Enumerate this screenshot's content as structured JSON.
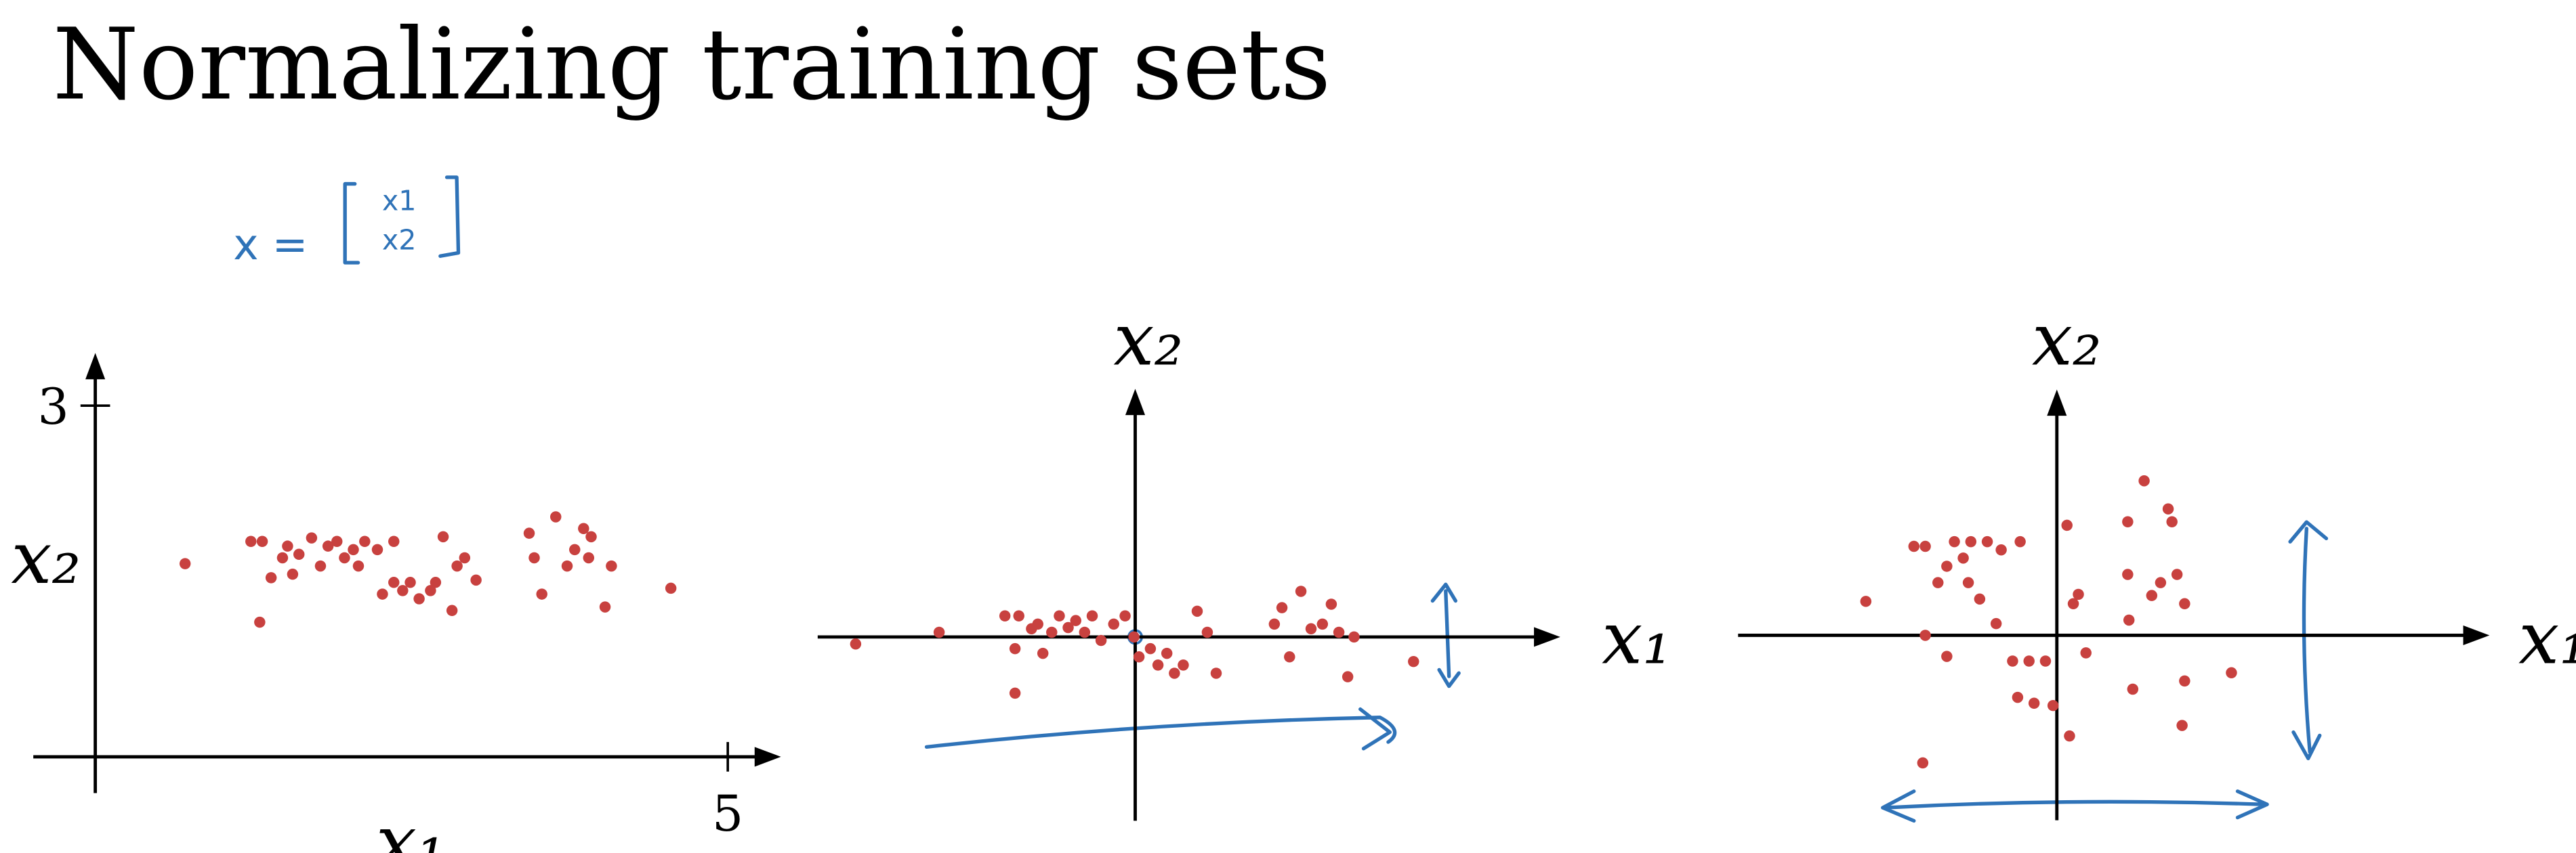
{
  "title": "Normalizing training sets",
  "annotation": {
    "lhs": "x =",
    "rows": [
      "x1",
      "x2"
    ]
  },
  "chart_data": [
    {
      "type": "scatter",
      "x_label": "x₁",
      "y_label": "x₂",
      "color": "#c8413f",
      "xlim": [
        -0.49,
        5.42
      ],
      "ylim": [
        -0.31,
        3.45
      ],
      "xticks": [
        5
      ],
      "yticks": [
        3
      ],
      "x": [
        0.71,
        1.23,
        1.32,
        1.3,
        1.39,
        1.48,
        1.52,
        1.56,
        1.61,
        1.71,
        1.78,
        1.84,
        1.91,
        1.97,
        2.04,
        2.08,
        2.13,
        2.23,
        2.27,
        2.36,
        2.36,
        2.43,
        2.49,
        2.56,
        2.65,
        2.69,
        2.75,
        2.82,
        2.86,
        2.92,
        3.01,
        3.43,
        3.47,
        3.53,
        3.64,
        3.73,
        3.79,
        3.86,
        3.9,
        3.92,
        4.03,
        4.08,
        4.55
      ],
      "y": [
        1.65,
        1.84,
        1.84,
        1.15,
        1.53,
        1.7,
        1.8,
        1.56,
        1.73,
        1.87,
        1.63,
        1.8,
        1.84,
        1.7,
        1.77,
        1.63,
        1.84,
        1.77,
        1.39,
        1.84,
        1.49,
        1.42,
        1.49,
        1.35,
        1.42,
        1.49,
        1.88,
        1.25,
        1.63,
        1.7,
        1.51,
        1.91,
        1.7,
        1.39,
        2.05,
        1.63,
        1.77,
        1.95,
        1.7,
        1.88,
        1.28,
        1.63,
        1.44
      ]
    },
    {
      "type": "scatter",
      "x_label": "x₁",
      "y_label": "x₂",
      "color": "#c8413f",
      "xlim": [
        -2.51,
        3.36
      ],
      "ylim": [
        -1.57,
        2.12
      ],
      "x": [
        -2.21,
        -1.55,
        -1.03,
        -0.95,
        -0.92,
        -0.82,
        -0.77,
        -0.73,
        -0.66,
        -0.6,
        -0.53,
        -0.47,
        -0.4,
        -0.34,
        -0.27,
        -0.17,
        -0.08,
        -0.01,
        0.03,
        0.12,
        0.18,
        0.25,
        0.31,
        0.38,
        0.49,
        0.57,
        0.64,
        1.1,
        1.16,
        1.22,
        1.31,
        1.39,
        1.48,
        1.55,
        1.61,
        1.68,
        1.73,
        2.2,
        -0.95
      ],
      "y": [
        -0.06,
        0.04,
        0.18,
        -0.1,
        0.18,
        0.07,
        0.11,
        -0.14,
        0.04,
        0.18,
        0.08,
        0.14,
        0.04,
        0.18,
        -0.03,
        0.11,
        0.18,
        0.0,
        -0.17,
        -0.1,
        -0.24,
        -0.14,
        -0.31,
        -0.24,
        0.22,
        0.04,
        -0.31,
        0.11,
        0.25,
        -0.17,
        0.39,
        0.07,
        0.11,
        0.28,
        0.04,
        -0.34,
        0.0,
        -0.21,
        -0.48
      ]
    },
    {
      "type": "scatter",
      "x_label": "x₁",
      "y_label": "x₂",
      "color": "#c8413f",
      "xlim": [
        -2.52,
        3.42
      ],
      "ylim": [
        -1.58,
        2.1
      ],
      "x": [
        -1.51,
        -1.13,
        -1.04,
        -1.04,
        -1.06,
        -0.94,
        -0.87,
        -0.87,
        -0.81,
        -0.74,
        -0.7,
        -0.68,
        -0.61,
        -0.55,
        -0.48,
        -0.44,
        -0.29,
        -0.35,
        -0.31,
        -0.22,
        -0.18,
        -0.09,
        -0.03,
        0.08,
        0.1,
        0.13,
        0.17,
        0.23,
        0.56,
        0.56,
        0.57,
        0.6,
        0.69,
        0.75,
        0.82,
        0.88,
        0.91,
        0.95,
        1.01,
        1.01,
        0.99,
        1.38
      ],
      "y": [
        0.29,
        0.76,
        0.76,
        0.0,
        -1.09,
        0.45,
        0.59,
        -0.18,
        0.8,
        0.66,
        0.45,
        0.8,
        0.31,
        0.8,
        0.1,
        0.73,
        0.8,
        -0.22,
        -0.53,
        -0.22,
        -0.58,
        -0.22,
        -0.6,
        0.94,
        -0.86,
        0.27,
        0.35,
        -0.15,
        0.97,
        0.52,
        0.13,
        -0.46,
        1.32,
        0.34,
        0.45,
        1.08,
        0.97,
        0.52,
        0.27,
        -0.39,
        -0.77,
        -0.32
      ]
    }
  ]
}
